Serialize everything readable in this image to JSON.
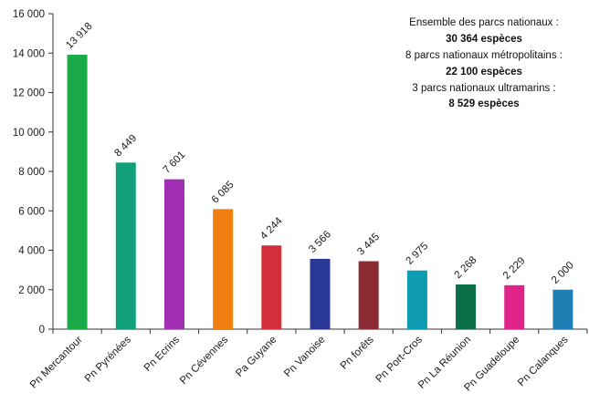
{
  "chart_data": {
    "type": "bar",
    "categories": [
      "Pn Mercantour",
      "Pn Pyrénées",
      "Pn Ecrins",
      "Pn Cévennes",
      "Pa Guyane",
      "Pn Vanoise",
      "Pn forêts",
      "Pn Port-Cros",
      "Pn La Réunion",
      "Pn Guadeloupe",
      "Pn Calanques"
    ],
    "values": [
      13918,
      8449,
      7601,
      6085,
      4244,
      3566,
      3445,
      2975,
      2268,
      2229,
      2000
    ],
    "value_labels": [
      "13 918",
      "8 449",
      "7 601",
      "6 085",
      "4 244",
      "3 566",
      "3 445",
      "2 975",
      "2 268",
      "2 229",
      "2 000"
    ],
    "colors": [
      "#1aab48",
      "#12a07a",
      "#a12fb3",
      "#f07e12",
      "#d42e3b",
      "#2b3795",
      "#8c2b34",
      "#0f9bb1",
      "#0a6e49",
      "#de2488",
      "#1e7fb5"
    ],
    "ylim": [
      0,
      16000
    ],
    "yticks": [
      0,
      2000,
      4000,
      6000,
      8000,
      10000,
      12000,
      14000,
      16000
    ],
    "ytick_labels": [
      "0",
      "2 000",
      "4 000",
      "6 000",
      "8 000",
      "10 000",
      "12 000",
      "14 000",
      "16 000"
    ],
    "grid": false,
    "title": "",
    "xlabel": "",
    "ylabel": ""
  },
  "annotation": {
    "line1": "Ensemble des parcs nationaux :",
    "line2": "30 364 espèces",
    "line3": "8 parcs nationaux métropolitains :",
    "line4": "22 100 espèces",
    "line5": "3 parcs nationaux ultramarins :",
    "line6": "8 529 espèces"
  }
}
